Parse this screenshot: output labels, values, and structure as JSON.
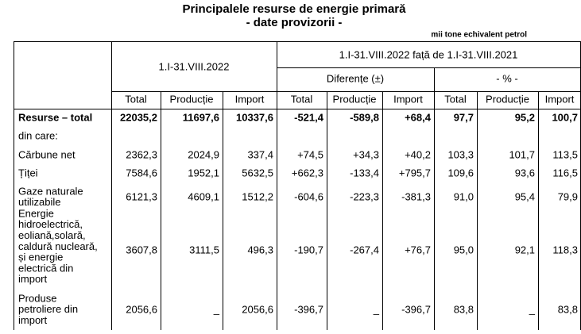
{
  "header": {
    "title": "Principalele resurse de energie primară",
    "subtitle": "- date provizorii -",
    "unit": "mii tone echivalent petrol"
  },
  "table": {
    "period": "1.I-31.VIII.2022",
    "comparison": "1.I-31.VIII.2022 față de 1.I-31.VIII.2021",
    "groups": [
      "Diferențe (±)",
      "- % -"
    ],
    "columns": [
      "Total",
      "Producție",
      "Import",
      "Total",
      "Producție",
      "Import",
      "Total",
      "Producție",
      "Import"
    ],
    "rows": [
      {
        "label": [
          "Resurse – total"
        ],
        "cells": [
          "22035,2",
          "11697,6",
          "10337,6",
          "-521,4",
          "-589,8",
          "+68,4",
          "97,7",
          "95,2",
          "100,7"
        ]
      },
      {
        "label": [
          "din care:"
        ]
      },
      {
        "label": [
          "Cărbune net"
        ],
        "cells": [
          "2362,3",
          "2024,9",
          "337,4",
          "+74,5",
          "+34,3",
          "+40,2",
          "103,3",
          "101,7",
          "113,5"
        ]
      },
      {
        "label": [
          "Țiței"
        ],
        "cells": [
          "7584,6",
          "1952,1",
          "5632,5",
          "+662,3",
          "-133,4",
          "+795,7",
          "109,6",
          "93,6",
          "116,5"
        ]
      },
      {
        "label": [
          "Gaze naturale",
          "utilizabile"
        ],
        "cells": [
          "6121,3",
          "4609,1",
          "1512,2",
          "-604,6",
          "-223,3",
          "-381,3",
          "91,0",
          "95,4",
          "79,9"
        ]
      },
      {
        "label": [
          "Energie",
          "hidroelectrică,",
          "eoliană,solară,",
          "caldură nucleară,",
          "și energie",
          "electrică din",
          "import"
        ],
        "cells": [
          "3607,8",
          "3111,5",
          "496,3",
          "-190,7",
          "-267,4",
          "+76,7",
          "95,0",
          "92,1",
          "118,3"
        ]
      },
      {
        "label": [
          "Produse",
          "petroliere din",
          "import"
        ],
        "cells": [
          "2056,6",
          "_",
          "2056,6",
          "-396,7",
          "_",
          "-396,7",
          "83,8",
          "_",
          "83,8"
        ]
      }
    ]
  }
}
